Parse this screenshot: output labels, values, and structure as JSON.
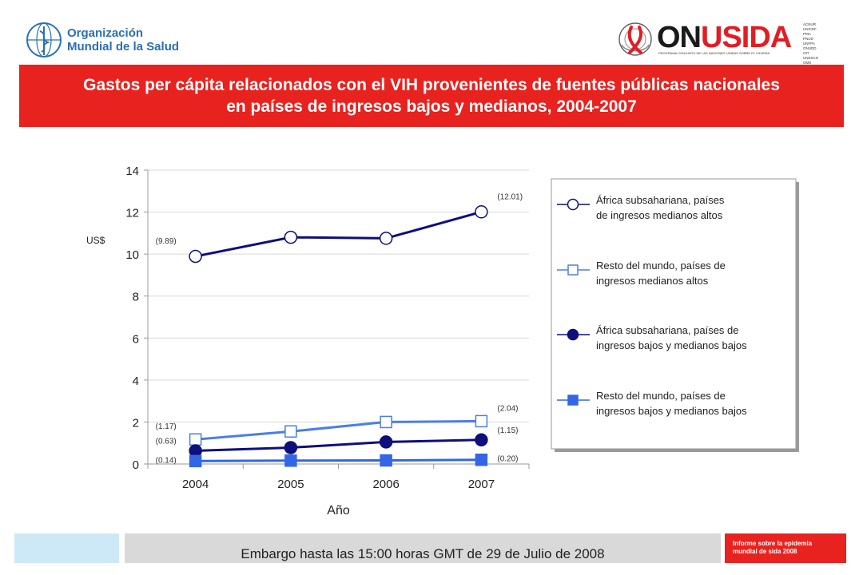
{
  "logos": {
    "who_line1": "Organización",
    "who_line2": "Mundial de la Salud",
    "onusida_on": "ON",
    "onusida_sida": "USIDA",
    "onusida_tagline": "PROGRAMA CONJUNTO DE LAS NACIONES UNIDAS SOBRE EL VIH/SIDA",
    "partners_col1": [
      "ACNUR",
      "UNICEF",
      "PMA",
      "PNUD",
      "UNFPA"
    ],
    "partners_col2": [
      "ONUDD",
      "OIT",
      "UNESCO",
      "OMS",
      "BANCO MUNDIAL"
    ]
  },
  "title": {
    "line1": "Gastos per cápita relacionados con el VIH provenientes de fuentes públicas nacionales",
    "line2": "en países de ingresos bajos y medianos, 2004-2007"
  },
  "chart_data": {
    "type": "line",
    "xlabel": "Año",
    "ylabel": "US$",
    "ylim": [
      0,
      14
    ],
    "yticks": [
      "0",
      "2",
      "4",
      "6",
      "8",
      "10",
      "12",
      "14"
    ],
    "categories": [
      "2004",
      "2005",
      "2006",
      "2007"
    ],
    "grid": true,
    "legend_position": "right",
    "series": [
      {
        "name": "África subsahariana, países de ingresos medianos altos",
        "name_line1": "África subsahariana, países",
        "name_line2": "de ingresos medianos altos",
        "values": [
          9.89,
          10.8,
          10.75,
          12.01
        ],
        "labels": [
          "(9.89)",
          "",
          "",
          "(12.01)"
        ],
        "color": "#0d0f7a",
        "marker": "circle-open"
      },
      {
        "name": "Resto del mundo, países de ingresos medianos altos",
        "name_line1": "Resto del mundo, países de",
        "name_line2": "ingresos medianos altos",
        "values": [
          1.17,
          1.55,
          2.0,
          2.04
        ],
        "labels": [
          "(1.17)",
          "",
          "",
          "(2.04)"
        ],
        "color": "#4a7ee8",
        "marker": "square-open"
      },
      {
        "name": "África subsahariana, países de ingresos bajos y medianos bajos",
        "name_line1": "África subsahariana, países de",
        "name_line2": "ingresos bajos y medianos bajos",
        "values": [
          0.63,
          0.78,
          1.05,
          1.15
        ],
        "labels": [
          "(0.63)",
          "",
          "",
          "(1.15)"
        ],
        "color": "#0d0f7a",
        "marker": "circle-filled"
      },
      {
        "name": "Resto del mundo, países de ingresos bajos y medianos bajos",
        "name_line1": "Resto del mundo, países de",
        "name_line2": "ingresos bajos y medianos bajos",
        "values": [
          0.14,
          0.16,
          0.17,
          0.2
        ],
        "labels": [
          "(0.14)",
          "",
          "",
          "(0.20)"
        ],
        "color": "#3366e6",
        "marker": "square-filled"
      }
    ]
  },
  "footer": {
    "embargo": "Embargo hasta las 15:00 horas GMT de 29 de Julio de 2008",
    "report_line1": "Informe sobre la epidemia",
    "report_line2": "mundial de sida 2008"
  },
  "colors": {
    "brand_red": "#e8221f",
    "light_blue": "#cde8f6",
    "footer_grey": "#d9d9d9"
  }
}
